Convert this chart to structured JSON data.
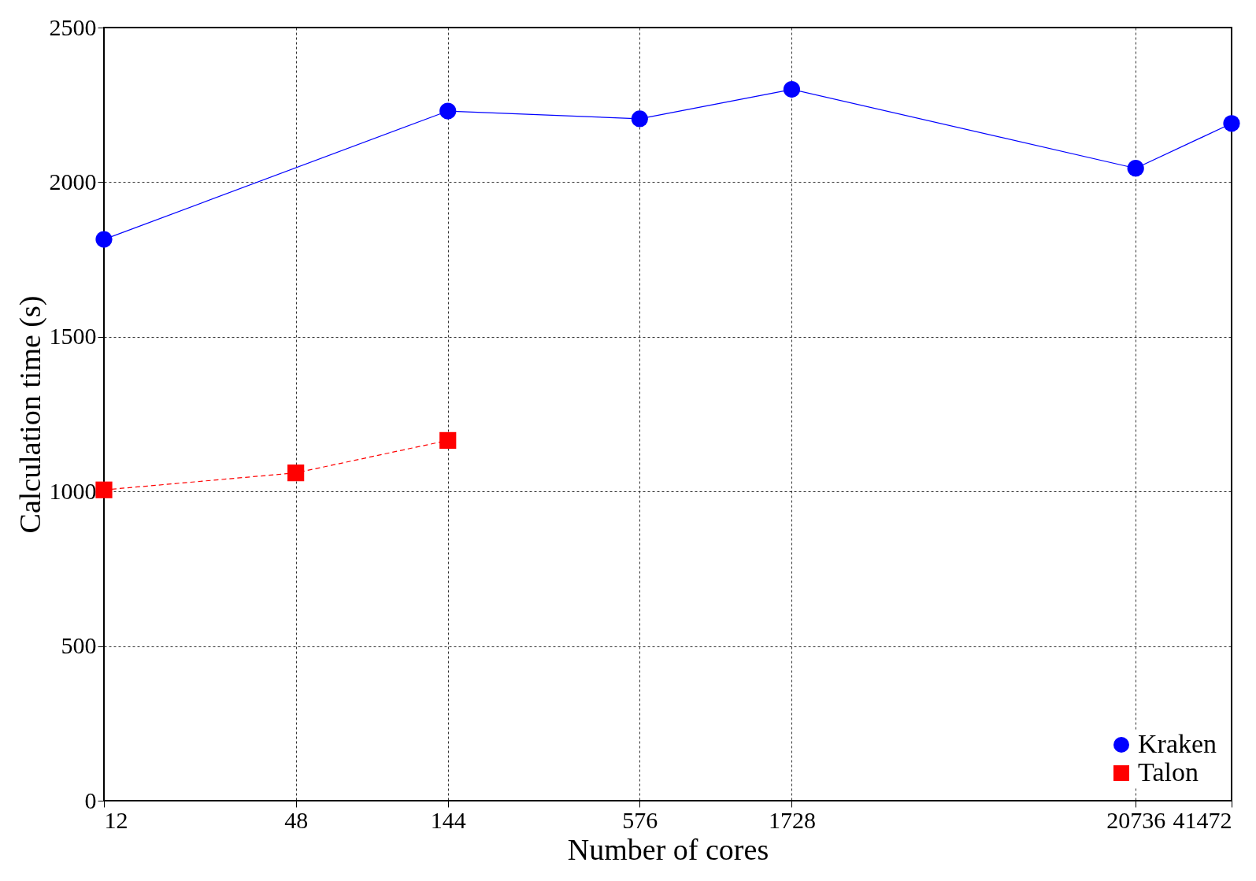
{
  "chart_data": {
    "type": "line",
    "xlabel": "Number of cores",
    "ylabel": "Calculation time (s)",
    "x": [
      12,
      144,
      576,
      1728,
      20736,
      41472
    ],
    "series": [
      {
        "name": "Kraken",
        "color": "#0000ff",
        "marker": "circle",
        "line_style": "solid",
        "values": [
          1815,
          2230,
          2205,
          2300,
          2045,
          2190
        ]
      },
      {
        "name": "Talon",
        "color": "#ff0000",
        "marker": "square",
        "line_style": "dashed",
        "x": [
          12,
          48,
          144
        ],
        "values": [
          1005,
          1060,
          1165
        ]
      }
    ],
    "log": "x",
    "xlim": [
      12,
      41472
    ],
    "xticks": [
      12,
      48,
      144,
      576,
      1728,
      20736,
      41472
    ],
    "ylim": [
      0,
      2500
    ],
    "yticks": [
      0,
      500,
      1000,
      1500,
      2000,
      2500
    ],
    "grid": true,
    "legend": "bottom right"
  }
}
